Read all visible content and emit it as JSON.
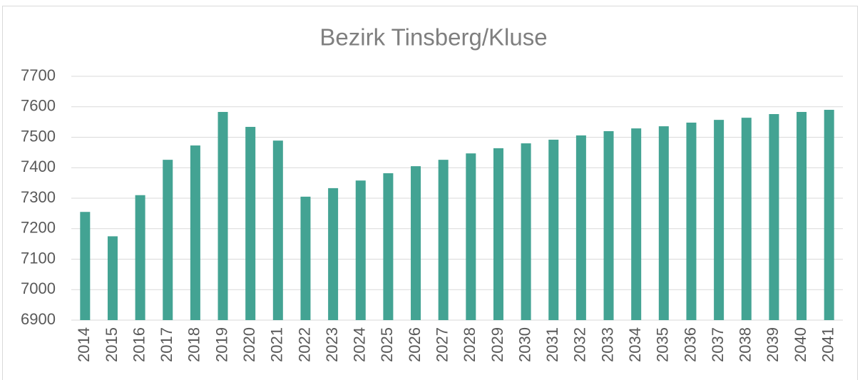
{
  "chart_data": {
    "type": "bar",
    "title": "Bezirk Tinsberg/Kluse",
    "categories": [
      "2014",
      "2015",
      "2016",
      "2017",
      "2018",
      "2019",
      "2020",
      "2021",
      "2022",
      "2023",
      "2024",
      "2025",
      "2026",
      "2027",
      "2028",
      "2029",
      "2030",
      "2031",
      "2032",
      "2033",
      "2034",
      "2035",
      "2036",
      "2037",
      "2038",
      "2039",
      "2040",
      "2041"
    ],
    "values": [
      7255,
      7175,
      7310,
      7426,
      7473,
      7583,
      7534,
      7489,
      7305,
      7333,
      7358,
      7382,
      7405,
      7426,
      7447,
      7464,
      7480,
      7492,
      7506,
      7520,
      7529,
      7536,
      7548,
      7557,
      7564,
      7576,
      7583,
      7590
    ],
    "color": "#43a393",
    "ylim": [
      6900,
      7700
    ],
    "yticks": [
      6900,
      7000,
      7100,
      7200,
      7300,
      7400,
      7500,
      7600,
      7700
    ],
    "grid": true
  }
}
